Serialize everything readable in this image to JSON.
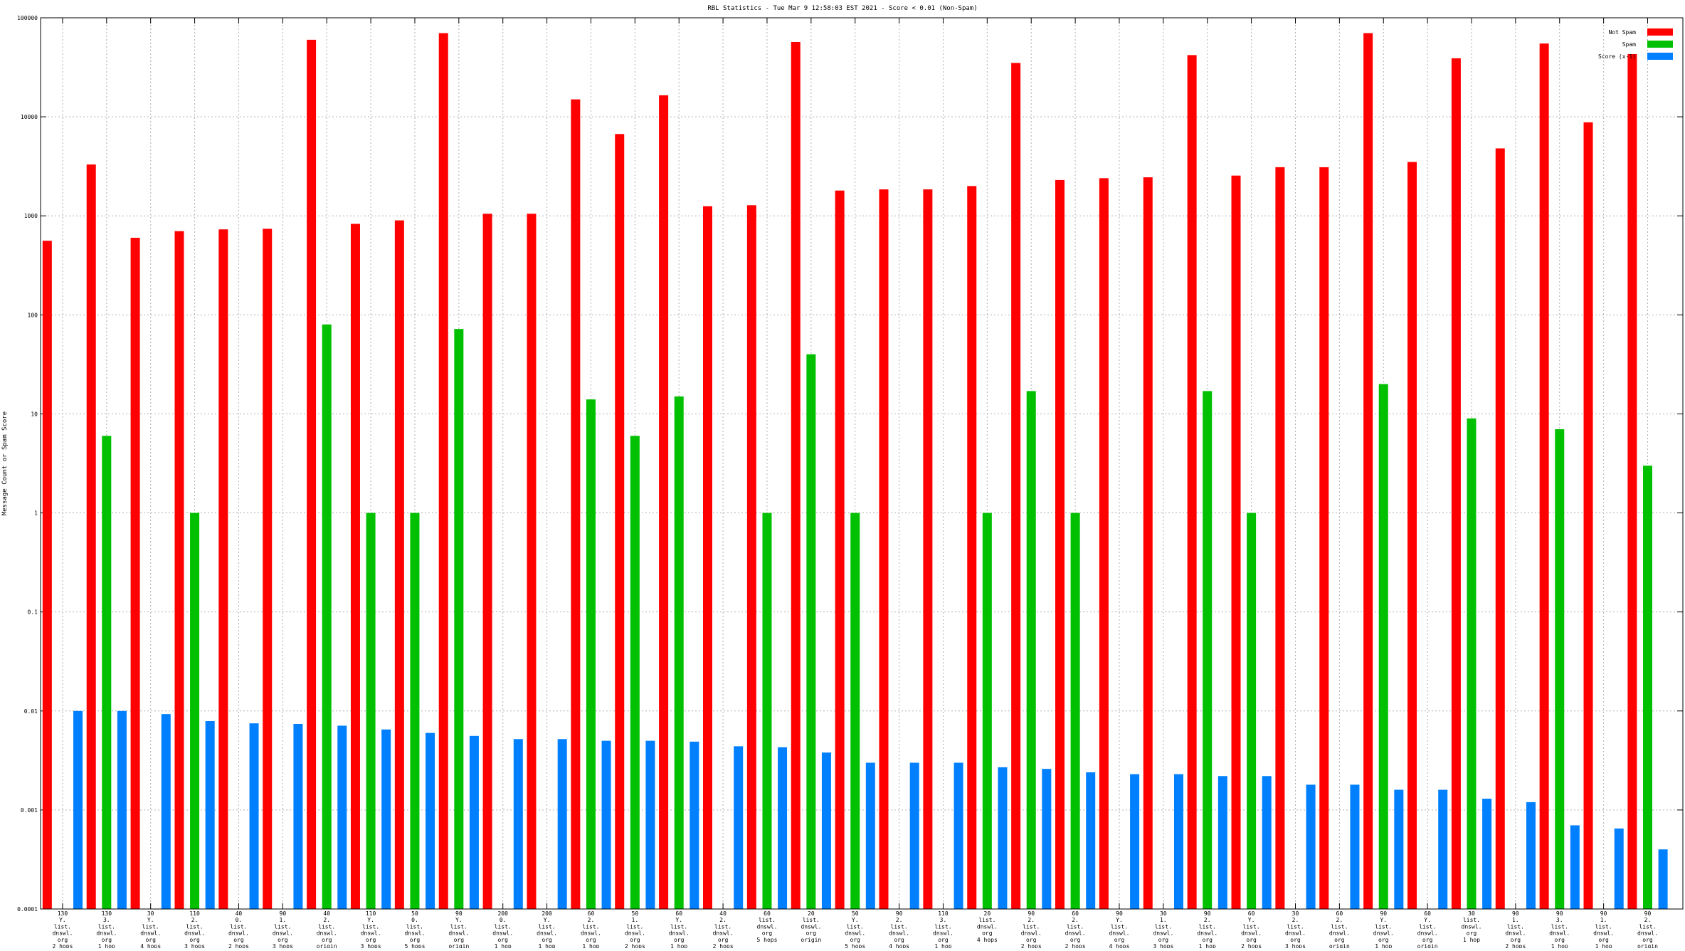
{
  "chart_data": {
    "type": "bar",
    "title": "RBL Statistics - Tue Mar  9 12:58:03 EST 2021 - Score < 0.01 (Non-Spam)",
    "xlabel": "",
    "ylabel": "Message Count or Spam Score",
    "y_scale": "log",
    "ylim": [
      0.0001,
      100000
    ],
    "y_ticks": [
      {
        "v": 0.0001,
        "label": "0.0001"
      },
      {
        "v": 0.001,
        "label": "0.001"
      },
      {
        "v": 0.01,
        "label": "0.01"
      },
      {
        "v": 0.1,
        "label": "0.1"
      },
      {
        "v": 1,
        "label": "1"
      },
      {
        "v": 10,
        "label": "10"
      },
      {
        "v": 100,
        "label": "100"
      },
      {
        "v": 1000,
        "label": "1000"
      },
      {
        "v": 10000,
        "label": "10000"
      },
      {
        "v": 100000,
        "label": "100000"
      }
    ],
    "grid": true,
    "legend_position": "top-right",
    "categories": [
      [
        "130",
        "Y.",
        "list.",
        "dnswl.",
        "org",
        "2 hops"
      ],
      [
        "130",
        "3.",
        "list.",
        "dnswl.",
        "org",
        "1 hop"
      ],
      [
        "30",
        "Y.",
        "list.",
        "dnswl.",
        "org",
        "4 hops"
      ],
      [
        "110",
        "2.",
        "list.",
        "dnswl.",
        "org",
        "3 hops"
      ],
      [
        "40",
        "0.",
        "list.",
        "dnswl.",
        "org",
        "2 hops"
      ],
      [
        "90",
        "1.",
        "list.",
        "dnswl.",
        "org",
        "3 hops"
      ],
      [
        "40",
        "2.",
        "list.",
        "dnswl.",
        "org",
        "origin"
      ],
      [
        "110",
        "Y.",
        "list.",
        "dnswl.",
        "org",
        "3 hops"
      ],
      [
        "50",
        "0.",
        "list.",
        "dnswl.",
        "org",
        "5 hops"
      ],
      [
        "90",
        "Y.",
        "list.",
        "dnswl.",
        "org",
        "origin"
      ],
      [
        "200",
        "0.",
        "list.",
        "dnswl.",
        "org",
        "1 hop"
      ],
      [
        "200",
        "Y.",
        "list.",
        "dnswl.",
        "org",
        "1 hop"
      ],
      [
        "60",
        "2.",
        "list.",
        "dnswl.",
        "org",
        "1 hop"
      ],
      [
        "50",
        "1.",
        "list.",
        "dnswl.",
        "org",
        "2 hops"
      ],
      [
        "60",
        "Y.",
        "list.",
        "dnswl.",
        "org",
        "1 hop"
      ],
      [
        "40",
        "2.",
        "list.",
        "dnswl.",
        "org",
        "2 hops"
      ],
      [
        "60",
        "list.",
        "dnswl.",
        "org",
        "5 hops"
      ],
      [
        "20",
        "list.",
        "dnswl.",
        "org",
        "origin"
      ],
      [
        "50",
        "Y.",
        "list.",
        "dnswl.",
        "org",
        "5 hops"
      ],
      [
        "90",
        "2.",
        "list.",
        "dnswl.",
        "org",
        "4 hops"
      ],
      [
        "110",
        "3.",
        "list.",
        "dnswl.",
        "org",
        "1 hop"
      ],
      [
        "20",
        "list.",
        "dnswl.",
        "org",
        "4 hops"
      ],
      [
        "90",
        "2.",
        "list.",
        "dnswl.",
        "org",
        "2 hops"
      ],
      [
        "60",
        "2.",
        "list.",
        "dnswl.",
        "org",
        "2 hops"
      ],
      [
        "90",
        "Y.",
        "list.",
        "dnswl.",
        "org",
        "4 hops"
      ],
      [
        "30",
        "1.",
        "list.",
        "dnswl.",
        "org",
        "3 hops"
      ],
      [
        "90",
        "2.",
        "list.",
        "dnswl.",
        "org",
        "1 hop"
      ],
      [
        "60",
        "Y.",
        "list.",
        "dnswl.",
        "org",
        "2 hops"
      ],
      [
        "30",
        "2.",
        "list.",
        "dnswl.",
        "org",
        "3 hops"
      ],
      [
        "60",
        "2.",
        "list.",
        "dnswl.",
        "org",
        "origin"
      ],
      [
        "90",
        "Y.",
        "list.",
        "dnswl.",
        "org",
        "1 hop"
      ],
      [
        "60",
        "Y.",
        "list.",
        "dnswl.",
        "org",
        "origin"
      ],
      [
        "30",
        "list.",
        "dnswl.",
        "org",
        "1 hop"
      ],
      [
        "90",
        "1.",
        "list.",
        "dnswl.",
        "org",
        "2 hops"
      ],
      [
        "90",
        "3.",
        "list.",
        "dnswl.",
        "org",
        "1 hop"
      ],
      [
        "90",
        "1.",
        "list.",
        "dnswl.",
        "org",
        "1 hop"
      ],
      [
        "90",
        "2.",
        "list.",
        "dnswl.",
        "org",
        "origin"
      ]
    ],
    "series": [
      {
        "name": "Not Spam",
        "color": "#ff0000",
        "values": [
          560,
          3300,
          600,
          700,
          730,
          740,
          60000,
          830,
          900,
          70000,
          1050,
          1050,
          15000,
          6700,
          16500,
          1250,
          1280,
          57000,
          1800,
          1850,
          1850,
          2000,
          35000,
          2300,
          2400,
          2450,
          42000,
          2550,
          3100,
          3100,
          70000,
          3500,
          39000,
          4800,
          55000,
          8800,
          43000
        ]
      },
      {
        "name": "Spam",
        "color": "#00c000",
        "values": [
          null,
          6,
          null,
          1,
          null,
          null,
          80,
          1,
          1,
          72,
          null,
          null,
          14,
          6,
          15,
          null,
          1,
          40,
          1,
          null,
          null,
          1,
          17,
          1,
          null,
          null,
          17,
          1,
          null,
          null,
          20,
          null,
          9,
          null,
          7,
          null,
          3
        ]
      },
      {
        "name": "Score (x-1)",
        "color": "#0080ff",
        "values": [
          0.01,
          0.01,
          0.0093,
          0.0079,
          0.0075,
          0.0074,
          0.0071,
          0.0065,
          0.006,
          0.0056,
          0.0052,
          0.0052,
          0.005,
          0.005,
          0.0049,
          0.0044,
          0.0043,
          0.0038,
          0.003,
          0.003,
          0.003,
          0.0027,
          0.0026,
          0.0024,
          0.0023,
          0.0023,
          0.0022,
          0.0022,
          0.0018,
          0.0018,
          0.0016,
          0.0016,
          0.0013,
          0.0012,
          0.0007,
          0.00065,
          0.0004
        ]
      }
    ]
  }
}
